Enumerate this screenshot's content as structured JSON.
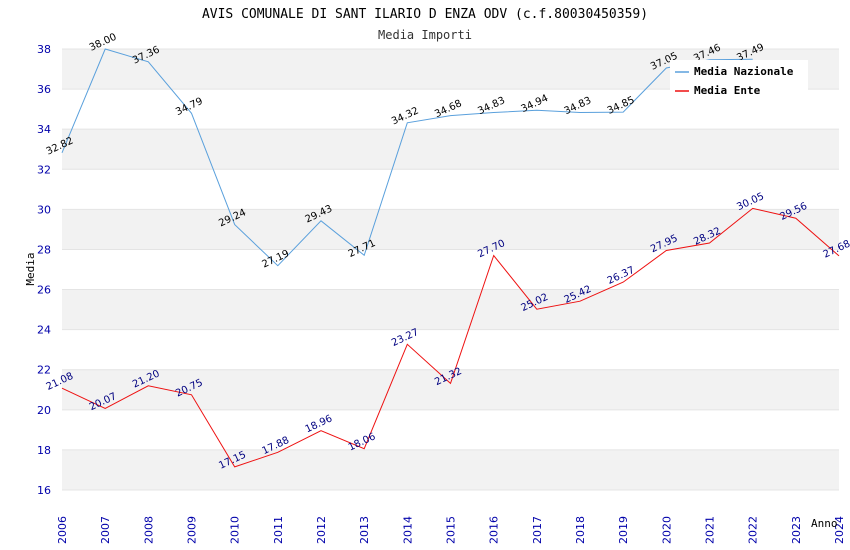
{
  "chart_data": {
    "type": "line",
    "title": "AVIS COMUNALE DI SANT ILARIO D ENZA ODV (c.f.80030450359)",
    "subtitle": "Media Importi",
    "xlabel": "Anno",
    "ylabel": "Media",
    "ylim": [
      16,
      38
    ],
    "yticks": [
      "16",
      "18",
      "20",
      "22",
      "24",
      "26",
      "28",
      "30",
      "32",
      "34",
      "36",
      "38"
    ],
    "grid": "horizontal bands",
    "legend_position": "top-right",
    "categories": [
      "2006",
      "2007",
      "2008",
      "2009",
      "2010",
      "2011",
      "2012",
      "2013",
      "2014",
      "2015",
      "2016",
      "2017",
      "2018",
      "2019",
      "2020",
      "2021",
      "2022",
      "2023",
      "2024"
    ],
    "series": [
      {
        "name": "Media Nazionale",
        "color": "#5aa0dc",
        "label_color": "#000000",
        "values": [
          32.82,
          38.0,
          37.36,
          34.79,
          29.24,
          27.19,
          29.43,
          27.71,
          34.32,
          34.68,
          34.83,
          34.94,
          34.83,
          34.85,
          37.05,
          37.46,
          37.49,
          null,
          null
        ],
        "labels": [
          "32.82",
          "38.00",
          "37.36",
          "34.79",
          "29.24",
          "27.19",
          "29.43",
          "27.71",
          "34.32",
          "34.68",
          "34.83",
          "34.94",
          "34.83",
          "34.85",
          "37.05",
          "37.46",
          "37.49",
          "",
          ""
        ]
      },
      {
        "name": "Media Ente",
        "color": "#ee1111",
        "label_color": "#000080",
        "values": [
          21.08,
          20.07,
          21.2,
          20.75,
          17.15,
          17.88,
          18.96,
          18.06,
          23.27,
          21.32,
          27.7,
          25.02,
          25.42,
          26.37,
          27.95,
          28.32,
          30.05,
          29.56,
          27.68
        ],
        "labels": [
          "21.08",
          "20.07",
          "21.20",
          "20.75",
          "17.15",
          "17.88",
          "18.96",
          "18.06",
          "23.27",
          "21.32",
          "27.70",
          "25.02",
          "25.42",
          "26.37",
          "27.95",
          "28.32",
          "30.05",
          "29.56",
          "27.68"
        ]
      }
    ]
  }
}
